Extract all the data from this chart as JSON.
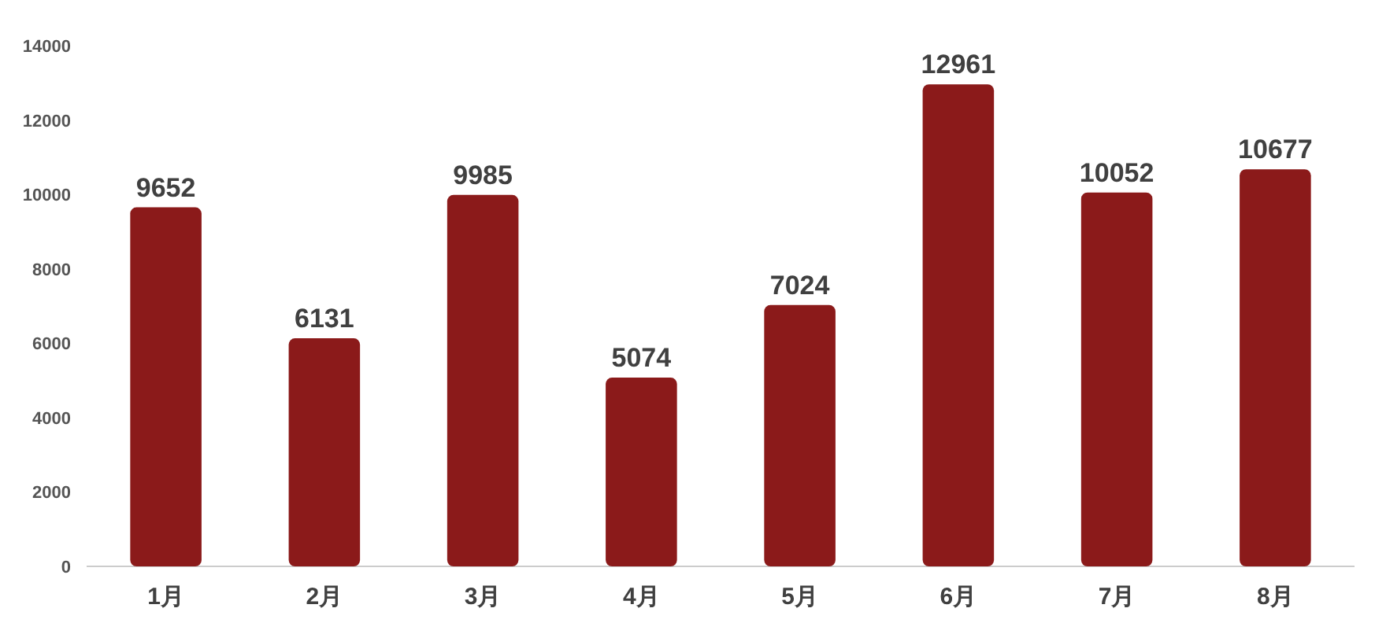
{
  "chart_data": {
    "type": "bar",
    "categories": [
      "1月",
      "2月",
      "3月",
      "4月",
      "5月",
      "6月",
      "7月",
      "8月"
    ],
    "values": [
      9652,
      6131,
      9985,
      5074,
      7024,
      12961,
      10052,
      10677
    ],
    "color": "#8b1a1a",
    "ylim": [
      0,
      14000
    ],
    "yticks": [
      0,
      2000,
      4000,
      6000,
      8000,
      10000,
      12000,
      14000
    ],
    "grid": false,
    "data_labels": true
  }
}
